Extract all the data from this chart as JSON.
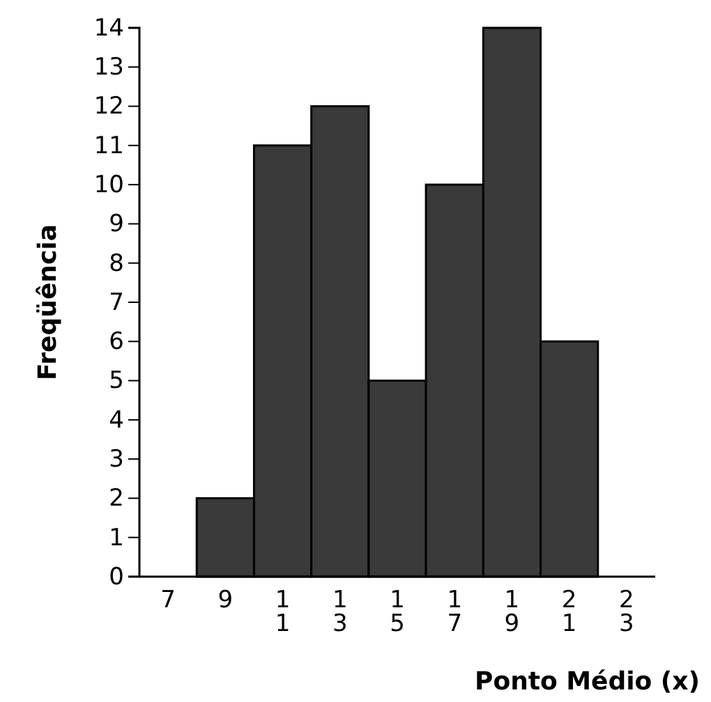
{
  "chart_data": {
    "type": "histogram",
    "xlabel": "Ponto Médio (x)",
    "ylabel": "Freqüência",
    "bins": [
      8,
      10,
      12,
      14,
      16,
      18,
      20,
      22
    ],
    "values": [
      2,
      11,
      12,
      5,
      10,
      14,
      6
    ],
    "color": "#3a3a3a",
    "xlim": [
      6,
      24
    ],
    "xticks": [
      7,
      9,
      11,
      13,
      15,
      17,
      19,
      21,
      23
    ],
    "ylim": [
      0,
      14
    ],
    "yticks": [
      0,
      1,
      2,
      3,
      4,
      5,
      6,
      7,
      8,
      9,
      10,
      11,
      12,
      13,
      14
    ],
    "grid": false
  }
}
